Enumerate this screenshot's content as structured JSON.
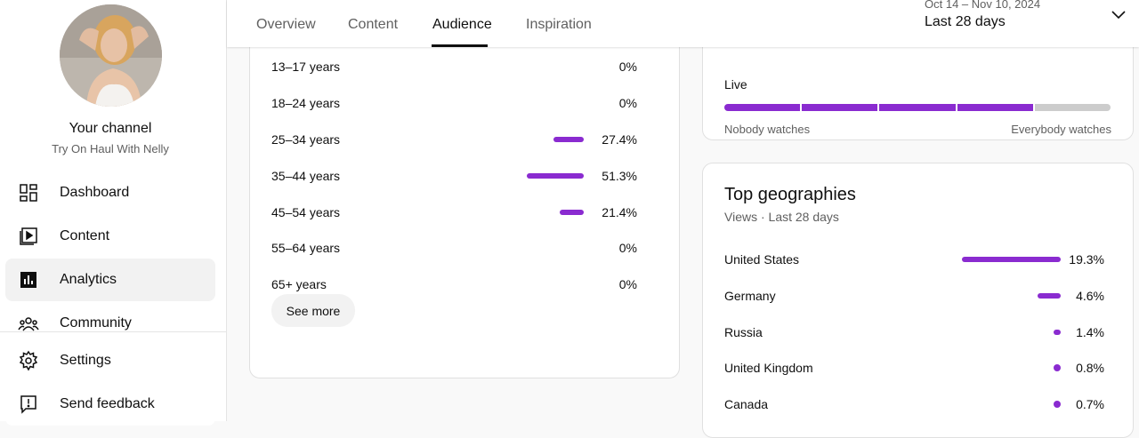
{
  "sidebar": {
    "channel_title": "Your channel",
    "channel_name": "Try On Haul With Nelly",
    "items": [
      {
        "label": "Dashboard",
        "icon": "dashboard-icon"
      },
      {
        "label": "Content",
        "icon": "content-icon"
      },
      {
        "label": "Analytics",
        "icon": "analytics-icon",
        "active": true
      },
      {
        "label": "Community",
        "icon": "community-icon"
      }
    ],
    "bottom_items": [
      {
        "label": "Settings",
        "icon": "gear-icon"
      },
      {
        "label": "Send feedback",
        "icon": "feedback-icon"
      }
    ]
  },
  "tabs": [
    {
      "label": "Overview"
    },
    {
      "label": "Content"
    },
    {
      "label": "Audience",
      "active": true
    },
    {
      "label": "Inspiration"
    }
  ],
  "date_picker": {
    "range": "Oct 14 – Nov 10, 2024",
    "label": "Last 28 days"
  },
  "age": {
    "rows": [
      {
        "label": "13–17 years",
        "pct": "0%",
        "value": 0
      },
      {
        "label": "18–24 years",
        "pct": "0%",
        "value": 0
      },
      {
        "label": "25–34 years",
        "pct": "27.4%",
        "value": 27.4
      },
      {
        "label": "35–44 years",
        "pct": "51.3%",
        "value": 51.3
      },
      {
        "label": "45–54 years",
        "pct": "21.4%",
        "value": 21.4
      },
      {
        "label": "55–64 years",
        "pct": "0%",
        "value": 0
      },
      {
        "label": "65+ years",
        "pct": "0%",
        "value": 0
      }
    ],
    "see_more": "See more"
  },
  "live": {
    "label": "Live",
    "left_label": "Nobody watches",
    "right_label": "Everybody watches",
    "filled_segments": 4,
    "total_segments": 5
  },
  "geo": {
    "title": "Top geographies",
    "subtitle": "Views · Last 28 days",
    "rows": [
      {
        "label": "United States",
        "pct": "19.3%",
        "value": 19.3
      },
      {
        "label": "Germany",
        "pct": "4.6%",
        "value": 4.6
      },
      {
        "label": "Russia",
        "pct": "1.4%",
        "value": 1.4
      },
      {
        "label": "United Kingdom",
        "pct": "0.8%",
        "value": 0.8
      },
      {
        "label": "Canada",
        "pct": "0.7%",
        "value": 0.7
      }
    ]
  },
  "colors": {
    "accent": "#8a2bd0",
    "track": "#cccccc"
  }
}
